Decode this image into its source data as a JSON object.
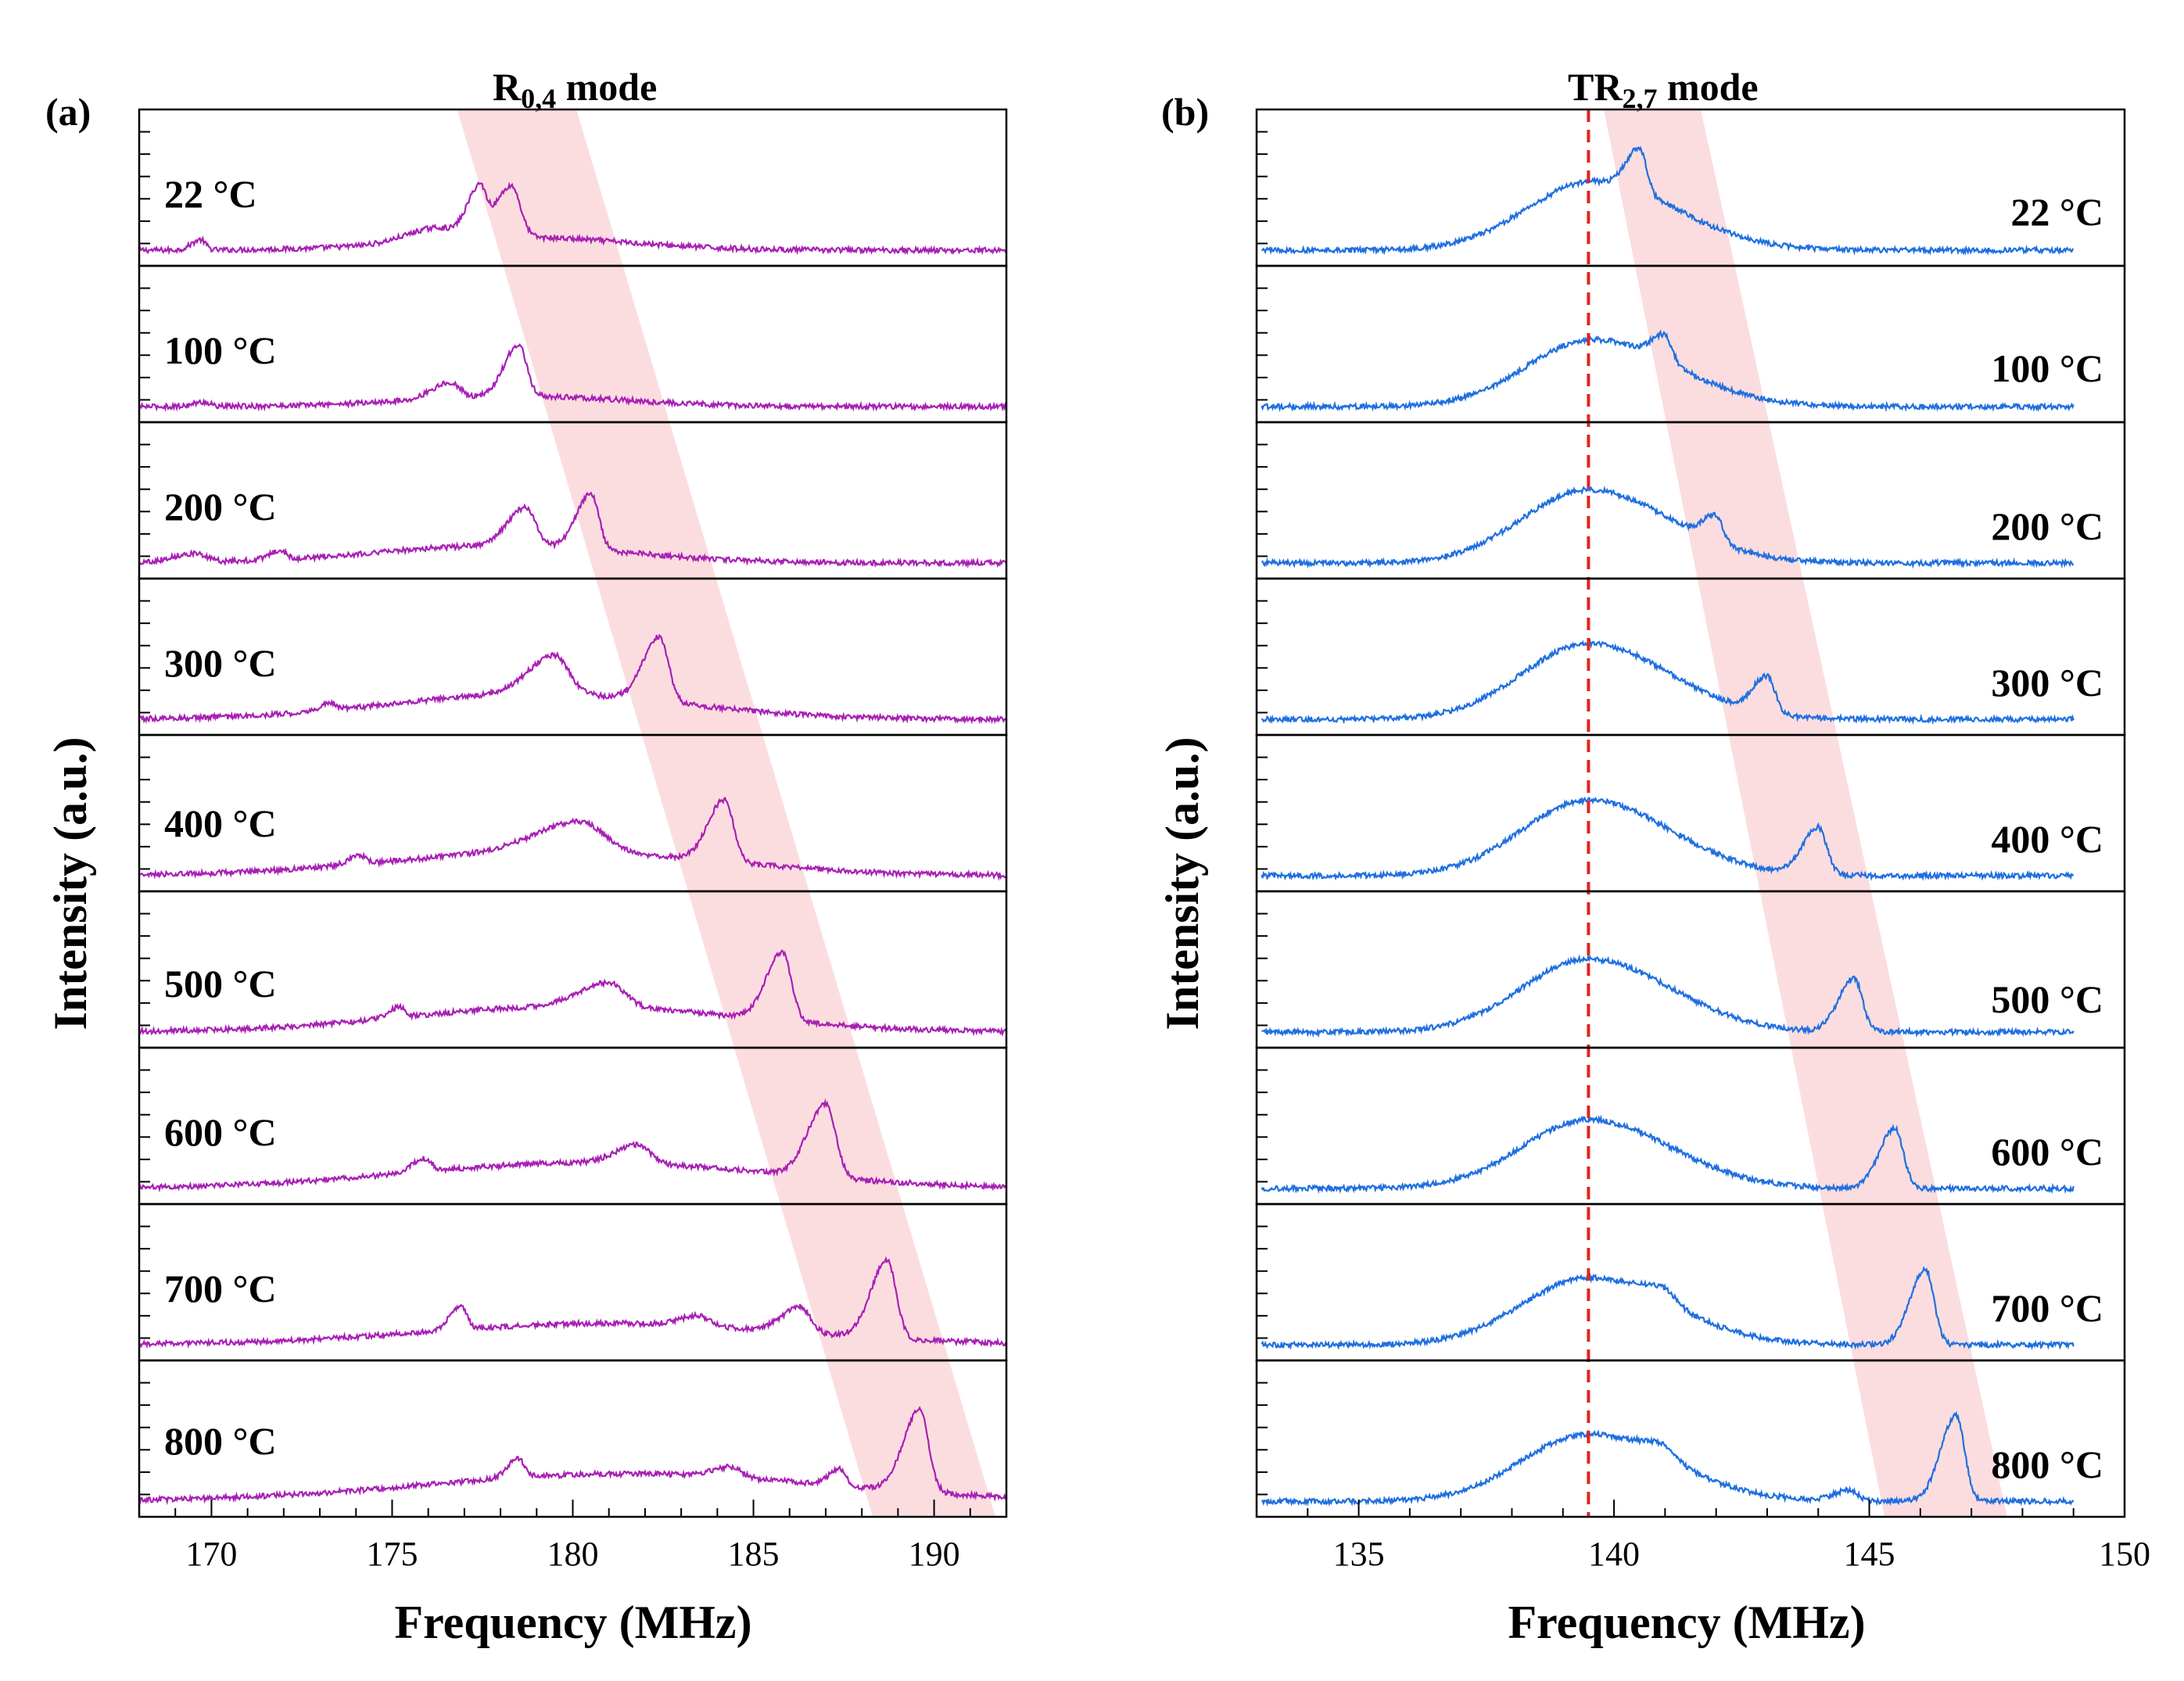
{
  "chart_data": [
    {
      "type": "line",
      "panel_label": "(a)",
      "title": {
        "main": "R",
        "sub": "0,4",
        "suffix": " mode"
      },
      "xlabel": "Frequency (MHz)",
      "ylabel": "Intensity (a.u.)",
      "xlim": [
        168,
        192
      ],
      "xticks": [
        170,
        175,
        180,
        185,
        190
      ],
      "xtick_labels": [
        "170",
        "175",
        "180",
        "185",
        "190"
      ],
      "line_color": "#a820b4",
      "highlight_band": {
        "color": "#f8c7cc",
        "top_range_mhz": [
          176.8,
          180.1
        ],
        "bottom_range_mhz": [
          188.3,
          191.7
        ]
      },
      "series": [
        {
          "name": "22 °C",
          "label": "22 °C",
          "features": [
            [
              169.7,
              0.12,
              0.25
            ],
            [
              176.2,
              0.15,
              0.8
            ],
            [
              177.4,
              0.55,
              0.35
            ],
            [
              178.3,
              0.6,
              0.45
            ]
          ],
          "broad_center": 178.5,
          "broad_width": 3.0,
          "broad_height": 0.15
        },
        {
          "name": "100 °C",
          "label": "100 °C",
          "features": [
            [
              169.8,
              0.05,
              0.3
            ],
            [
              176.6,
              0.18,
              0.5
            ],
            [
              178.5,
              0.6,
              0.4
            ]
          ],
          "broad_center": 178.5,
          "broad_width": 3.0,
          "broad_height": 0.12
        },
        {
          "name": "200 °C",
          "label": "200 °C",
          "features": [
            [
              169.5,
              0.1,
              0.6
            ],
            [
              171.9,
              0.1,
              0.3
            ],
            [
              178.7,
              0.45,
              0.5
            ],
            [
              180.5,
              0.65,
              0.4
            ]
          ],
          "broad_center": 178.0,
          "broad_width": 3.5,
          "broad_height": 0.2
        },
        {
          "name": "300 °C",
          "label": "300 °C",
          "features": [
            [
              173.3,
              0.08,
              0.3
            ],
            [
              179.5,
              0.45,
              0.7
            ],
            [
              182.4,
              0.75,
              0.45
            ]
          ],
          "broad_center": 179.0,
          "broad_width": 4.0,
          "broad_height": 0.3
        },
        {
          "name": "400 °C",
          "label": "400 °C",
          "features": [
            [
              174.1,
              0.1,
              0.3
            ],
            [
              180.2,
              0.35,
              1.2
            ],
            [
              184.2,
              0.72,
              0.45
            ]
          ],
          "broad_center": 179.5,
          "broad_width": 4.5,
          "broad_height": 0.28
        },
        {
          "name": "500 °C",
          "label": "500 °C",
          "features": [
            [
              175.2,
              0.12,
              0.3
            ],
            [
              181.0,
              0.28,
              0.8
            ],
            [
              185.8,
              0.8,
              0.45
            ]
          ],
          "broad_center": 180.0,
          "broad_width": 4.5,
          "broad_height": 0.3
        },
        {
          "name": "600 °C",
          "label": "600 °C",
          "features": [
            [
              175.9,
              0.15,
              0.35
            ],
            [
              181.8,
              0.22,
              0.6
            ],
            [
              187.0,
              0.85,
              0.5
            ]
          ],
          "broad_center": 180.5,
          "broad_width": 5.0,
          "broad_height": 0.3
        },
        {
          "name": "700 °C",
          "label": "700 °C",
          "features": [
            [
              176.9,
              0.28,
              0.3
            ],
            [
              183.5,
              0.12,
              0.5
            ],
            [
              186.3,
              0.3,
              0.5
            ],
            [
              188.7,
              0.9,
              0.45
            ]
          ],
          "broad_center": 181.0,
          "broad_width": 5.0,
          "broad_height": 0.25
        },
        {
          "name": "800 °C",
          "label": "800 °C",
          "features": [
            [
              178.5,
              0.22,
              0.3
            ],
            [
              184.4,
              0.12,
              0.5
            ],
            [
              187.4,
              0.2,
              0.3
            ],
            [
              189.6,
              0.95,
              0.45
            ]
          ],
          "broad_center": 181.5,
          "broad_width": 5.5,
          "broad_height": 0.32
        }
      ]
    },
    {
      "type": "line",
      "panel_label": "(b)",
      "title": {
        "main": "TR",
        "sub": "2,7",
        "suffix": " mode"
      },
      "xlabel": "Frequency (MHz)",
      "ylabel": "Intensity (a.u.)",
      "xlim": [
        133,
        150
      ],
      "xticks": [
        135,
        140,
        145,
        150
      ],
      "xtick_labels": [
        "135",
        "140",
        "145",
        "150"
      ],
      "data_x_range": [
        133.1,
        149.0
      ],
      "line_color": "#1f6fe0",
      "reference_line": {
        "x": 139.5,
        "color": "#e82020",
        "style": "dashed"
      },
      "highlight_band": {
        "color": "#f8c7cc",
        "top_range_mhz": [
          139.8,
          141.7
        ],
        "bottom_range_mhz": [
          145.3,
          147.7
        ]
      },
      "series": [
        {
          "name": "22 °C",
          "label": "22 °C",
          "main_peak": 139.6,
          "main_height": 0.8,
          "features": [
            [
              140.5,
              0.5,
              0.25
            ]
          ]
        },
        {
          "name": "100 °C",
          "label": "100 °C",
          "main_peak": 139.6,
          "main_height": 0.78,
          "features": [
            [
              141.0,
              0.3,
              0.25
            ]
          ]
        },
        {
          "name": "200 °C",
          "label": "200 °C",
          "main_peak": 139.5,
          "main_height": 0.85,
          "features": [
            [
              142.0,
              0.3,
              0.25
            ]
          ]
        },
        {
          "name": "300 °C",
          "label": "300 °C",
          "main_peak": 139.5,
          "main_height": 0.88,
          "features": [
            [
              143.0,
              0.42,
              0.28
            ]
          ]
        },
        {
          "name": "400 °C",
          "label": "400 °C",
          "main_peak": 139.5,
          "main_height": 0.88,
          "features": [
            [
              144.0,
              0.55,
              0.3
            ]
          ]
        },
        {
          "name": "500 °C",
          "label": "500 °C",
          "main_peak": 139.5,
          "main_height": 0.85,
          "features": [
            [
              144.7,
              0.62,
              0.3
            ]
          ]
        },
        {
          "name": "600 °C",
          "label": "600 °C",
          "main_peak": 139.5,
          "main_height": 0.8,
          "features": [
            [
              145.5,
              0.7,
              0.3
            ]
          ]
        },
        {
          "name": "700 °C",
          "label": "700 °C",
          "main_peak": 139.5,
          "main_height": 0.78,
          "features": [
            [
              141.0,
              0.15,
              0.4
            ],
            [
              146.1,
              0.88,
              0.3
            ]
          ]
        },
        {
          "name": "800 °C",
          "label": "800 °C",
          "main_peak": 139.5,
          "main_height": 0.78,
          "features": [
            [
              141.0,
              0.15,
              0.4
            ],
            [
              144.6,
              0.12,
              0.3
            ],
            [
              146.7,
              1.0,
              0.3
            ]
          ]
        }
      ]
    }
  ]
}
